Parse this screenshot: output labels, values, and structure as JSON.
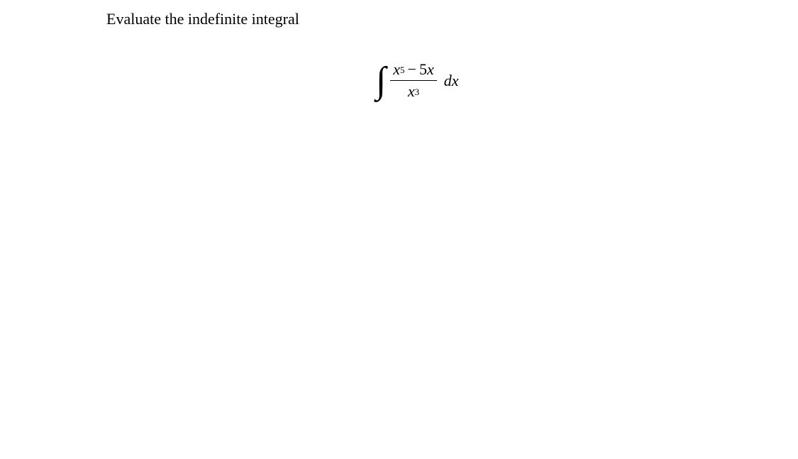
{
  "problem": {
    "prompt": "Evaluate the indefinite integral",
    "integral": {
      "integral_symbol": "∫",
      "numerator": {
        "term1_var": "x",
        "term1_exp": "5",
        "operator": "−",
        "term2_coef": "5",
        "term2_var": "x"
      },
      "denominator": {
        "var": "x",
        "exp": "3"
      },
      "differential": "dx"
    }
  },
  "style": {
    "background_color": "#ffffff",
    "text_color": "#000000",
    "prompt_fontsize": 22,
    "math_fontsize": 22,
    "integral_fontsize": 52,
    "superscript_fontsize": 13,
    "font_family": "Times New Roman"
  }
}
